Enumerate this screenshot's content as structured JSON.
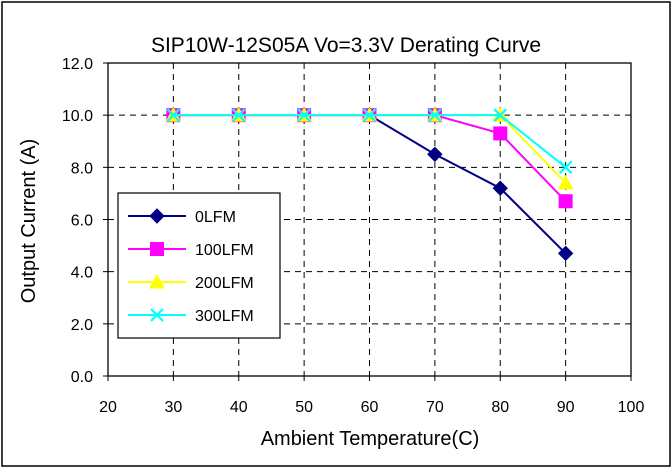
{
  "chart_data": {
    "type": "line",
    "title": "SIP10W-12S05A Vo=3.3V Derating Curve",
    "xlabel": "Ambient Temperature(C)",
    "ylabel": "Output Current (A)",
    "xlim": [
      20,
      100
    ],
    "ylim": [
      0,
      12
    ],
    "x_ticks": [
      20,
      30,
      40,
      50,
      60,
      70,
      80,
      90,
      100
    ],
    "y_ticks": [
      0,
      2,
      4,
      6,
      8,
      10,
      12
    ],
    "y_tick_labels": [
      "0.0",
      "2.0",
      "4.0",
      "6.0",
      "8.0",
      "10.0",
      "12.0"
    ],
    "grid": true,
    "grid_style": "dashed",
    "legend_position": "middle-left",
    "series": [
      {
        "name": "0LFM",
        "color": "#000080",
        "marker": "diamond",
        "x": [
          30,
          40,
          50,
          60,
          70,
          80,
          90
        ],
        "y": [
          10,
          10,
          10,
          10,
          8.5,
          7.2,
          4.7
        ]
      },
      {
        "name": "100LFM",
        "color": "#ff00ff",
        "marker": "square",
        "x": [
          30,
          40,
          50,
          60,
          70,
          80,
          90
        ],
        "y": [
          10,
          10,
          10,
          10,
          10,
          9.3,
          6.7
        ]
      },
      {
        "name": "200LFM",
        "color": "#ffff00",
        "marker": "triangle",
        "x": [
          30,
          40,
          50,
          60,
          70,
          80,
          90
        ],
        "y": [
          10,
          10,
          10,
          10,
          10,
          10,
          7.4
        ]
      },
      {
        "name": "300LFM",
        "color": "#00ffff",
        "marker": "x",
        "x": [
          30,
          40,
          50,
          60,
          70,
          80,
          90
        ],
        "y": [
          10,
          10,
          10,
          10,
          10,
          10,
          8
        ]
      }
    ]
  }
}
